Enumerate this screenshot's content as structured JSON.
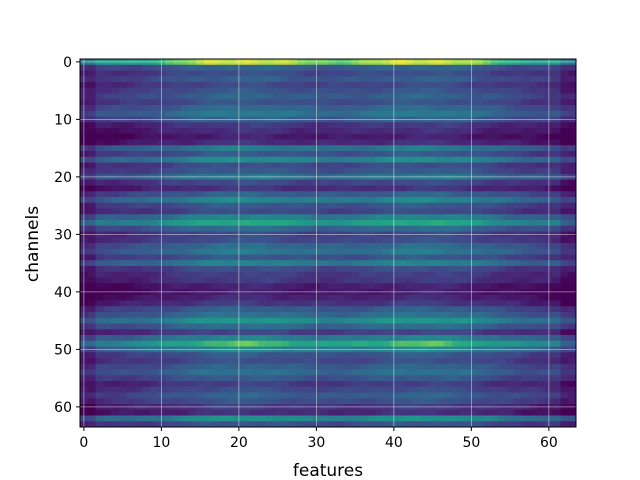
{
  "chart_data": {
    "type": "heatmap",
    "title": "",
    "xlabel": "features",
    "ylabel": "channels",
    "colormap": "viridis",
    "n_rows": 64,
    "n_cols": 64,
    "xlim": [
      -0.5,
      63.5
    ],
    "ylim": [
      63.5,
      -0.5
    ],
    "xticks": [
      0,
      10,
      20,
      30,
      40,
      50,
      60
    ],
    "yticks": [
      0,
      10,
      20,
      30,
      40,
      50,
      60
    ],
    "grid": true,
    "value_range": [
      0,
      1
    ],
    "row_levels": [
      0.78,
      0.3,
      0.22,
      0.28,
      0.2,
      0.25,
      0.3,
      0.24,
      0.33,
      0.4,
      0.3,
      0.14,
      0.1,
      0.05,
      0.1,
      0.4,
      0.26,
      0.48,
      0.22,
      0.26,
      0.4,
      0.2,
      0.12,
      0.3,
      0.46,
      0.26,
      0.2,
      0.44,
      0.6,
      0.34,
      0.2,
      0.22,
      0.34,
      0.4,
      0.26,
      0.44,
      0.22,
      0.16,
      0.14,
      0.06,
      0.04,
      0.08,
      0.14,
      0.28,
      0.36,
      0.52,
      0.34,
      0.18,
      0.44,
      0.66,
      0.46,
      0.26,
      0.22,
      0.3,
      0.36,
      0.26,
      0.16,
      0.22,
      0.3,
      0.24,
      0.14,
      0.1,
      0.5,
      0.24
    ],
    "column_modulation": {
      "peaks_at_features": [
        20,
        44
      ],
      "amplitude": 0.28
    }
  }
}
